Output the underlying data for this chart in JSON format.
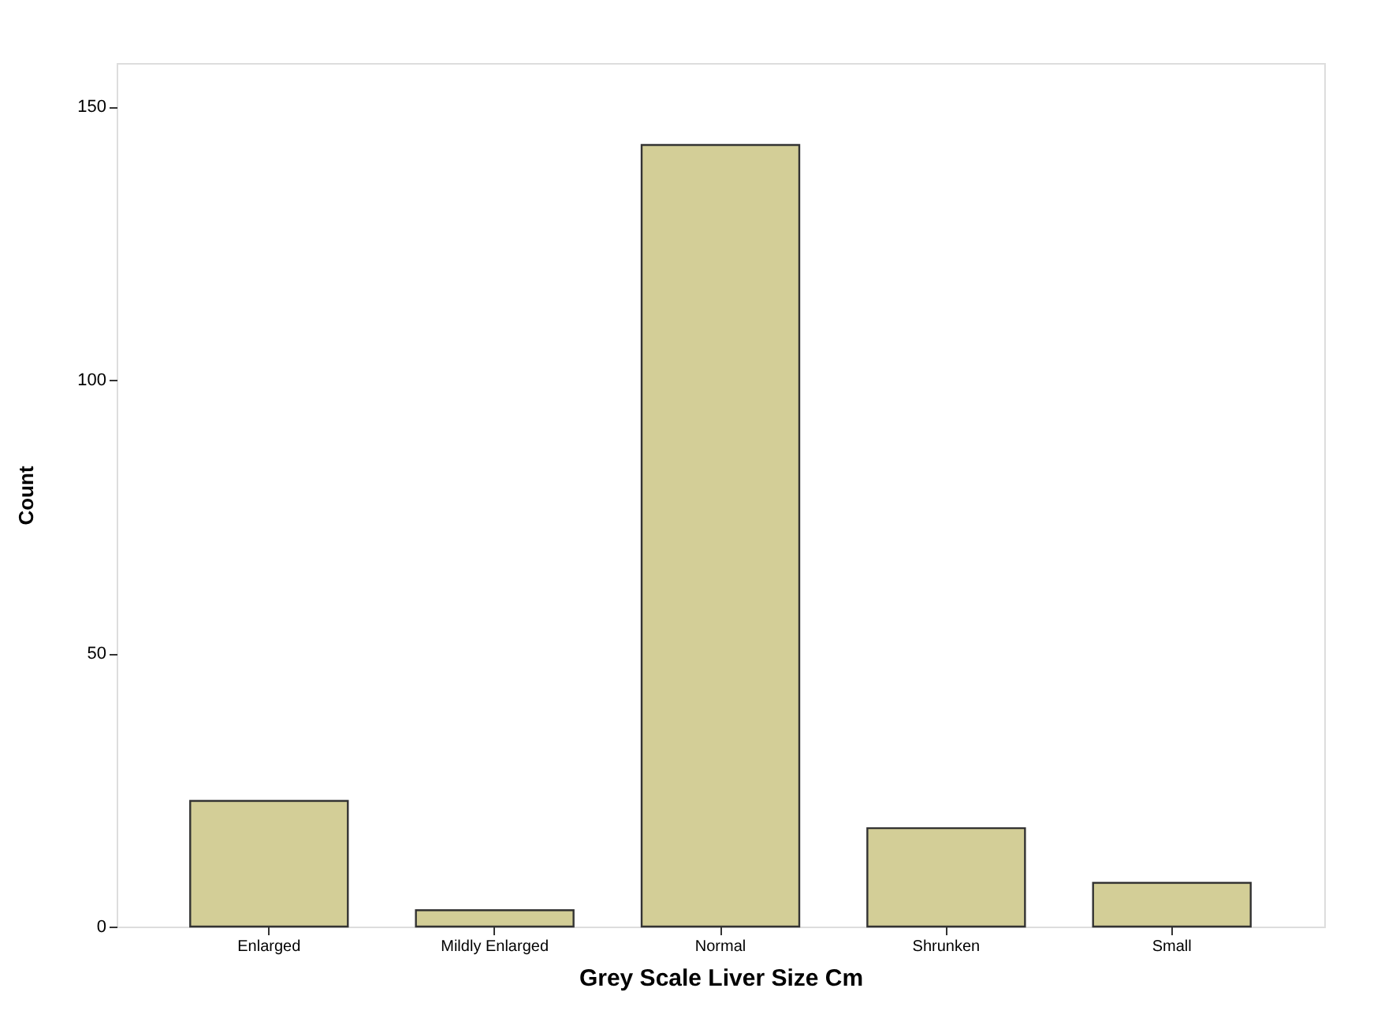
{
  "chart_data": {
    "type": "bar",
    "xlabel": "Grey Scale Liver Size        Cm",
    "ylabel": "Count",
    "categories": [
      "Enlarged",
      "Mildly Enlarged",
      "Normal",
      "Shrunken",
      "Small"
    ],
    "values": [
      23,
      3,
      143,
      18,
      8
    ],
    "color": "#d3ce97",
    "ylim": [
      0,
      158
    ],
    "yticks": [
      0,
      50,
      100,
      150
    ],
    "grid": false
  }
}
